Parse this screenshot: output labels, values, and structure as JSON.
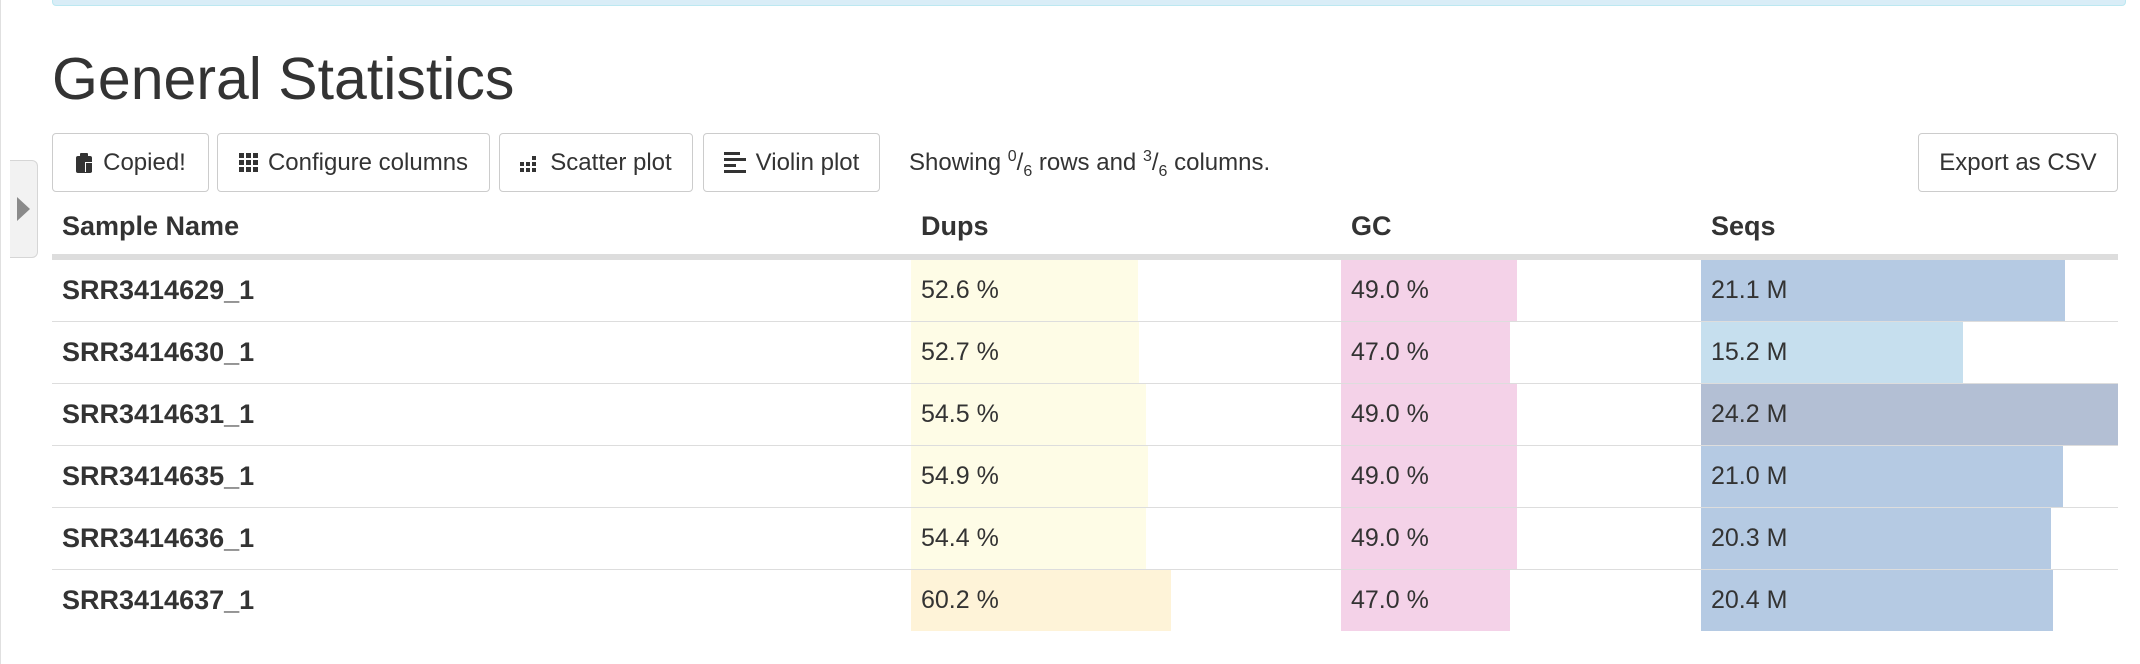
{
  "page_title": "General Statistics",
  "toolbar": {
    "copied_label": "Copied!",
    "configure_label": "Configure columns",
    "scatter_label": "Scatter plot",
    "violin_label": "Violin plot",
    "export_label": "Export as CSV",
    "status": {
      "prefix": "Showing ",
      "rows_hidden": "0",
      "rows_total": "6",
      "middle": " rows and ",
      "cols_hidden": "3",
      "cols_total": "6",
      "suffix": " columns."
    }
  },
  "table": {
    "headers": [
      "Sample Name",
      "Dups",
      "GC",
      "Seqs"
    ],
    "rows": [
      {
        "sample": "SRR3414629_1",
        "dups": "52.6 %",
        "dups_pct": 52.6,
        "gc": "49.0 %",
        "gc_pct": 49.0,
        "seqs": "21.1 M",
        "seqs_val": 21.1
      },
      {
        "sample": "SRR3414630_1",
        "dups": "52.7 %",
        "dups_pct": 52.7,
        "gc": "47.0 %",
        "gc_pct": 47.0,
        "seqs": "15.2 M",
        "seqs_val": 15.2
      },
      {
        "sample": "SRR3414631_1",
        "dups": "54.5 %",
        "dups_pct": 54.5,
        "gc": "49.0 %",
        "gc_pct": 49.0,
        "seqs": "24.2 M",
        "seqs_val": 24.2
      },
      {
        "sample": "SRR3414635_1",
        "dups": "54.9 %",
        "dups_pct": 54.9,
        "gc": "49.0 %",
        "gc_pct": 49.0,
        "seqs": "21.0 M",
        "seqs_val": 21.0
      },
      {
        "sample": "SRR3414636_1",
        "dups": "54.4 %",
        "dups_pct": 54.4,
        "gc": "49.0 %",
        "gc_pct": 49.0,
        "seqs": "20.3 M",
        "seqs_val": 20.3
      },
      {
        "sample": "SRR3414637_1",
        "dups": "60.2 %",
        "dups_pct": 60.2,
        "gc": "47.0 %",
        "gc_pct": 47.0,
        "seqs": "20.4 M",
        "seqs_val": 20.4
      }
    ]
  },
  "colors": {
    "dups_bar": "#fefce6",
    "dups_bar_high": "#fef3d8",
    "gc_bar": "#f4d2e8",
    "seqs_bar": "#b5cae3",
    "seqs_bar_low": "#c6dfee",
    "seqs_bar_max": "#b3bfd4"
  },
  "icons": {
    "copied": "clipboard-icon",
    "configure": "grid-icon",
    "scatter": "scatter-icon",
    "violin": "violin-icon",
    "toggle": "expand-toggle-icon"
  }
}
